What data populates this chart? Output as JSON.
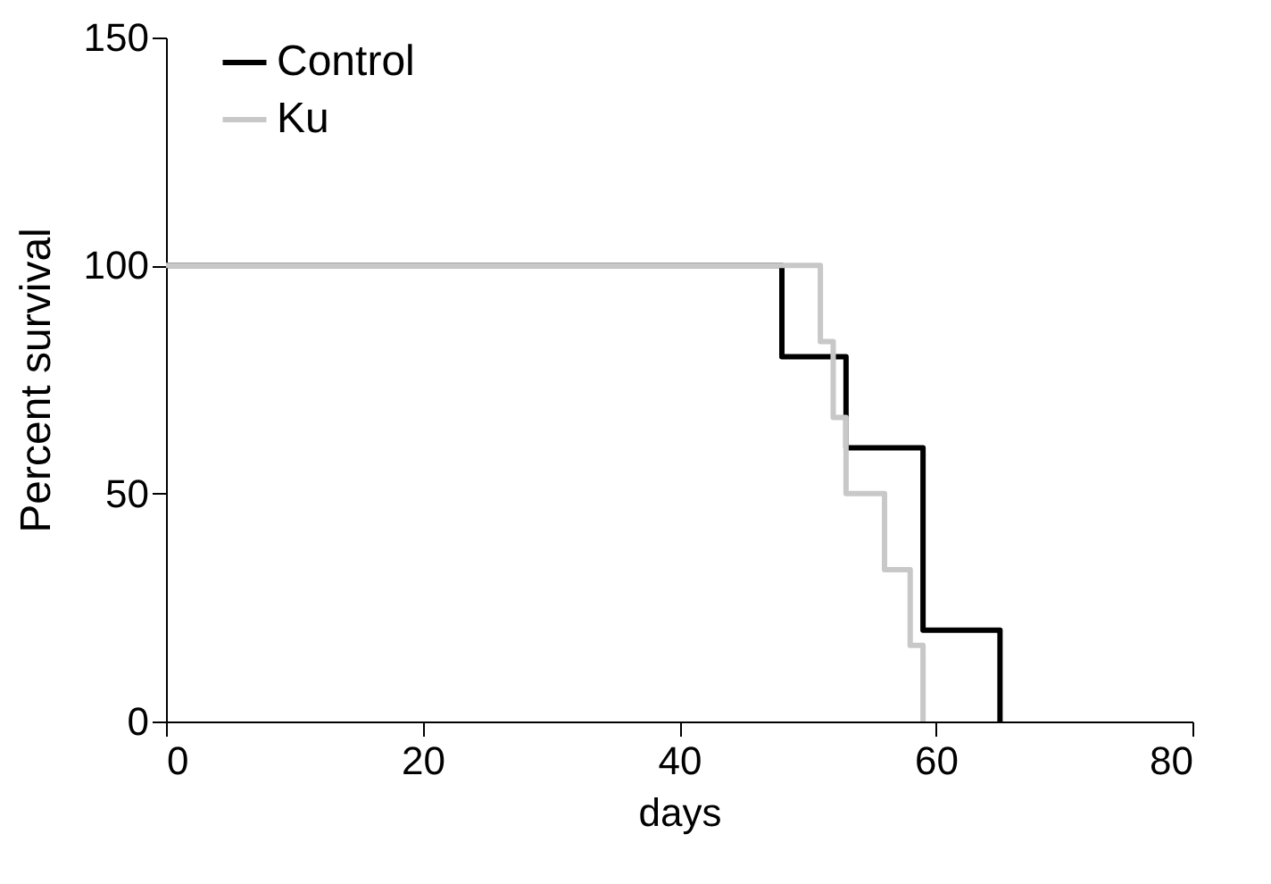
{
  "chart_data": {
    "type": "step",
    "xlabel": "days",
    "ylabel": "Percent survival",
    "xlim": [
      0,
      80
    ],
    "xticks": [
      0,
      20,
      40,
      60,
      80
    ],
    "ylim": [
      0,
      150
    ],
    "yticks": [
      0,
      50,
      100,
      150
    ],
    "grid": false,
    "legend": "top left",
    "marker": "none",
    "line_style": "solid",
    "series": [
      {
        "name": "Control",
        "color": "#000000",
        "x": [
          0,
          48,
          53,
          59,
          65
        ],
        "values": [
          100,
          80,
          60,
          20,
          0
        ]
      },
      {
        "name": "Ku",
        "color": "#c8c8c8",
        "x": [
          0,
          51,
          52,
          53,
          56,
          58,
          59
        ],
        "values": [
          100,
          83.3,
          66.7,
          50,
          33.3,
          16.7,
          0
        ]
      }
    ]
  }
}
